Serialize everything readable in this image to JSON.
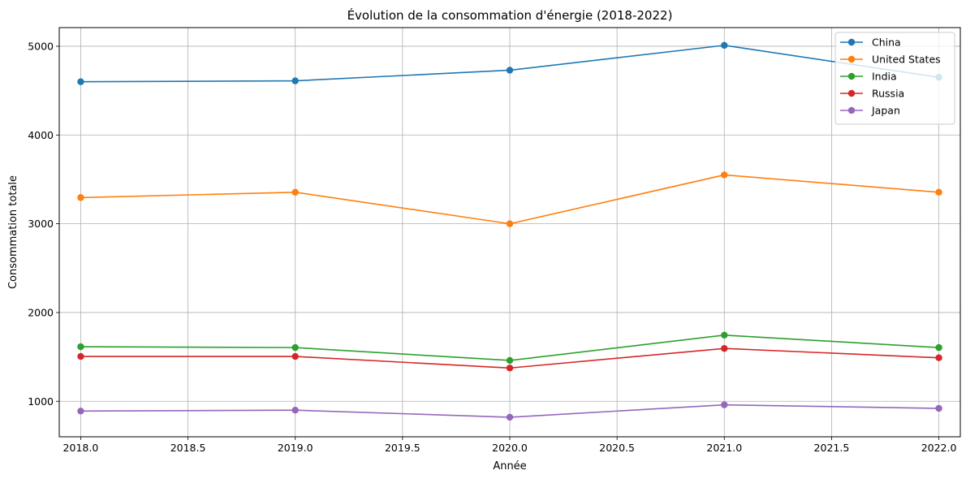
{
  "chart_data": {
    "type": "line",
    "title": "Évolution de la consommation d'énergie (2018-2022)",
    "xlabel": "Année",
    "ylabel": "Consommation totale",
    "x": [
      2018,
      2019,
      2020,
      2021,
      2022
    ],
    "xlim": [
      2017.9,
      2022.1
    ],
    "ylim": [
      600,
      5210
    ],
    "xticks": [
      2018.0,
      2018.5,
      2019.0,
      2019.5,
      2020.0,
      2020.5,
      2021.0,
      2021.5,
      2022.0
    ],
    "xtick_labels": [
      "2018.0",
      "2018.5",
      "2019.0",
      "2019.5",
      "2020.0",
      "2020.5",
      "2021.0",
      "2021.5",
      "2022.0"
    ],
    "yticks": [
      1000,
      2000,
      3000,
      4000,
      5000
    ],
    "ytick_labels": [
      "1000",
      "2000",
      "3000",
      "4000",
      "5000"
    ],
    "grid": true,
    "legend_position": "top-right",
    "series": [
      {
        "name": "China",
        "color": "#1f77b4",
        "values": [
          4600,
          4610,
          4730,
          5010,
          4650
        ]
      },
      {
        "name": "United States",
        "color": "#ff7f0e",
        "values": [
          3295,
          3355,
          3000,
          3550,
          3355
        ]
      },
      {
        "name": "India",
        "color": "#2ca02c",
        "values": [
          1615,
          1605,
          1460,
          1745,
          1605
        ]
      },
      {
        "name": "Russia",
        "color": "#d62728",
        "values": [
          1505,
          1505,
          1375,
          1595,
          1490
        ]
      },
      {
        "name": "Japan",
        "color": "#9467bd",
        "values": [
          890,
          900,
          820,
          960,
          920
        ]
      }
    ]
  }
}
